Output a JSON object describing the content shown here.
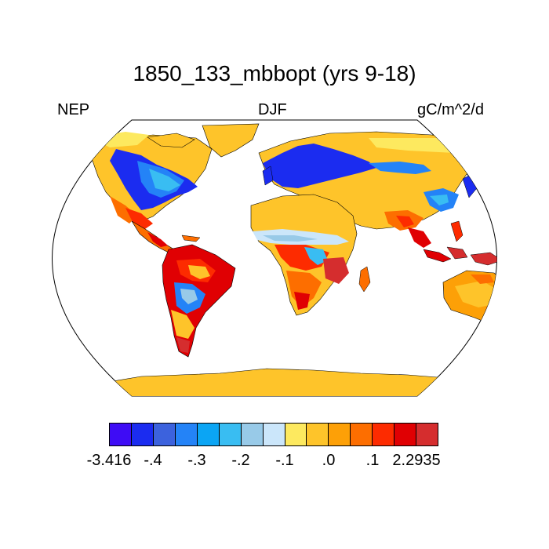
{
  "title": "1850_133_mbbopt (yrs 9-18)",
  "left_label": "NEP",
  "center_label": "DJF",
  "right_label": "gC/m^2/d",
  "colorbar": {
    "colors": [
      "#3e0cf5",
      "#1b2cf0",
      "#3c62dd",
      "#2483f7",
      "#0ba5f4",
      "#39bdf2",
      "#98cae8",
      "#cbe6fa",
      "#fde95f",
      "#fec42a",
      "#fda007",
      "#fd6e00",
      "#fd2b00",
      "#e00003",
      "#d52d2e"
    ],
    "labels": [
      "-3.416",
      "-.4",
      "-.3",
      "-.2",
      "-.1",
      ".0",
      ".1",
      "2.2935"
    ]
  },
  "map": {
    "projection": "Robinson",
    "variable": "NEP",
    "season": "DJF"
  }
}
